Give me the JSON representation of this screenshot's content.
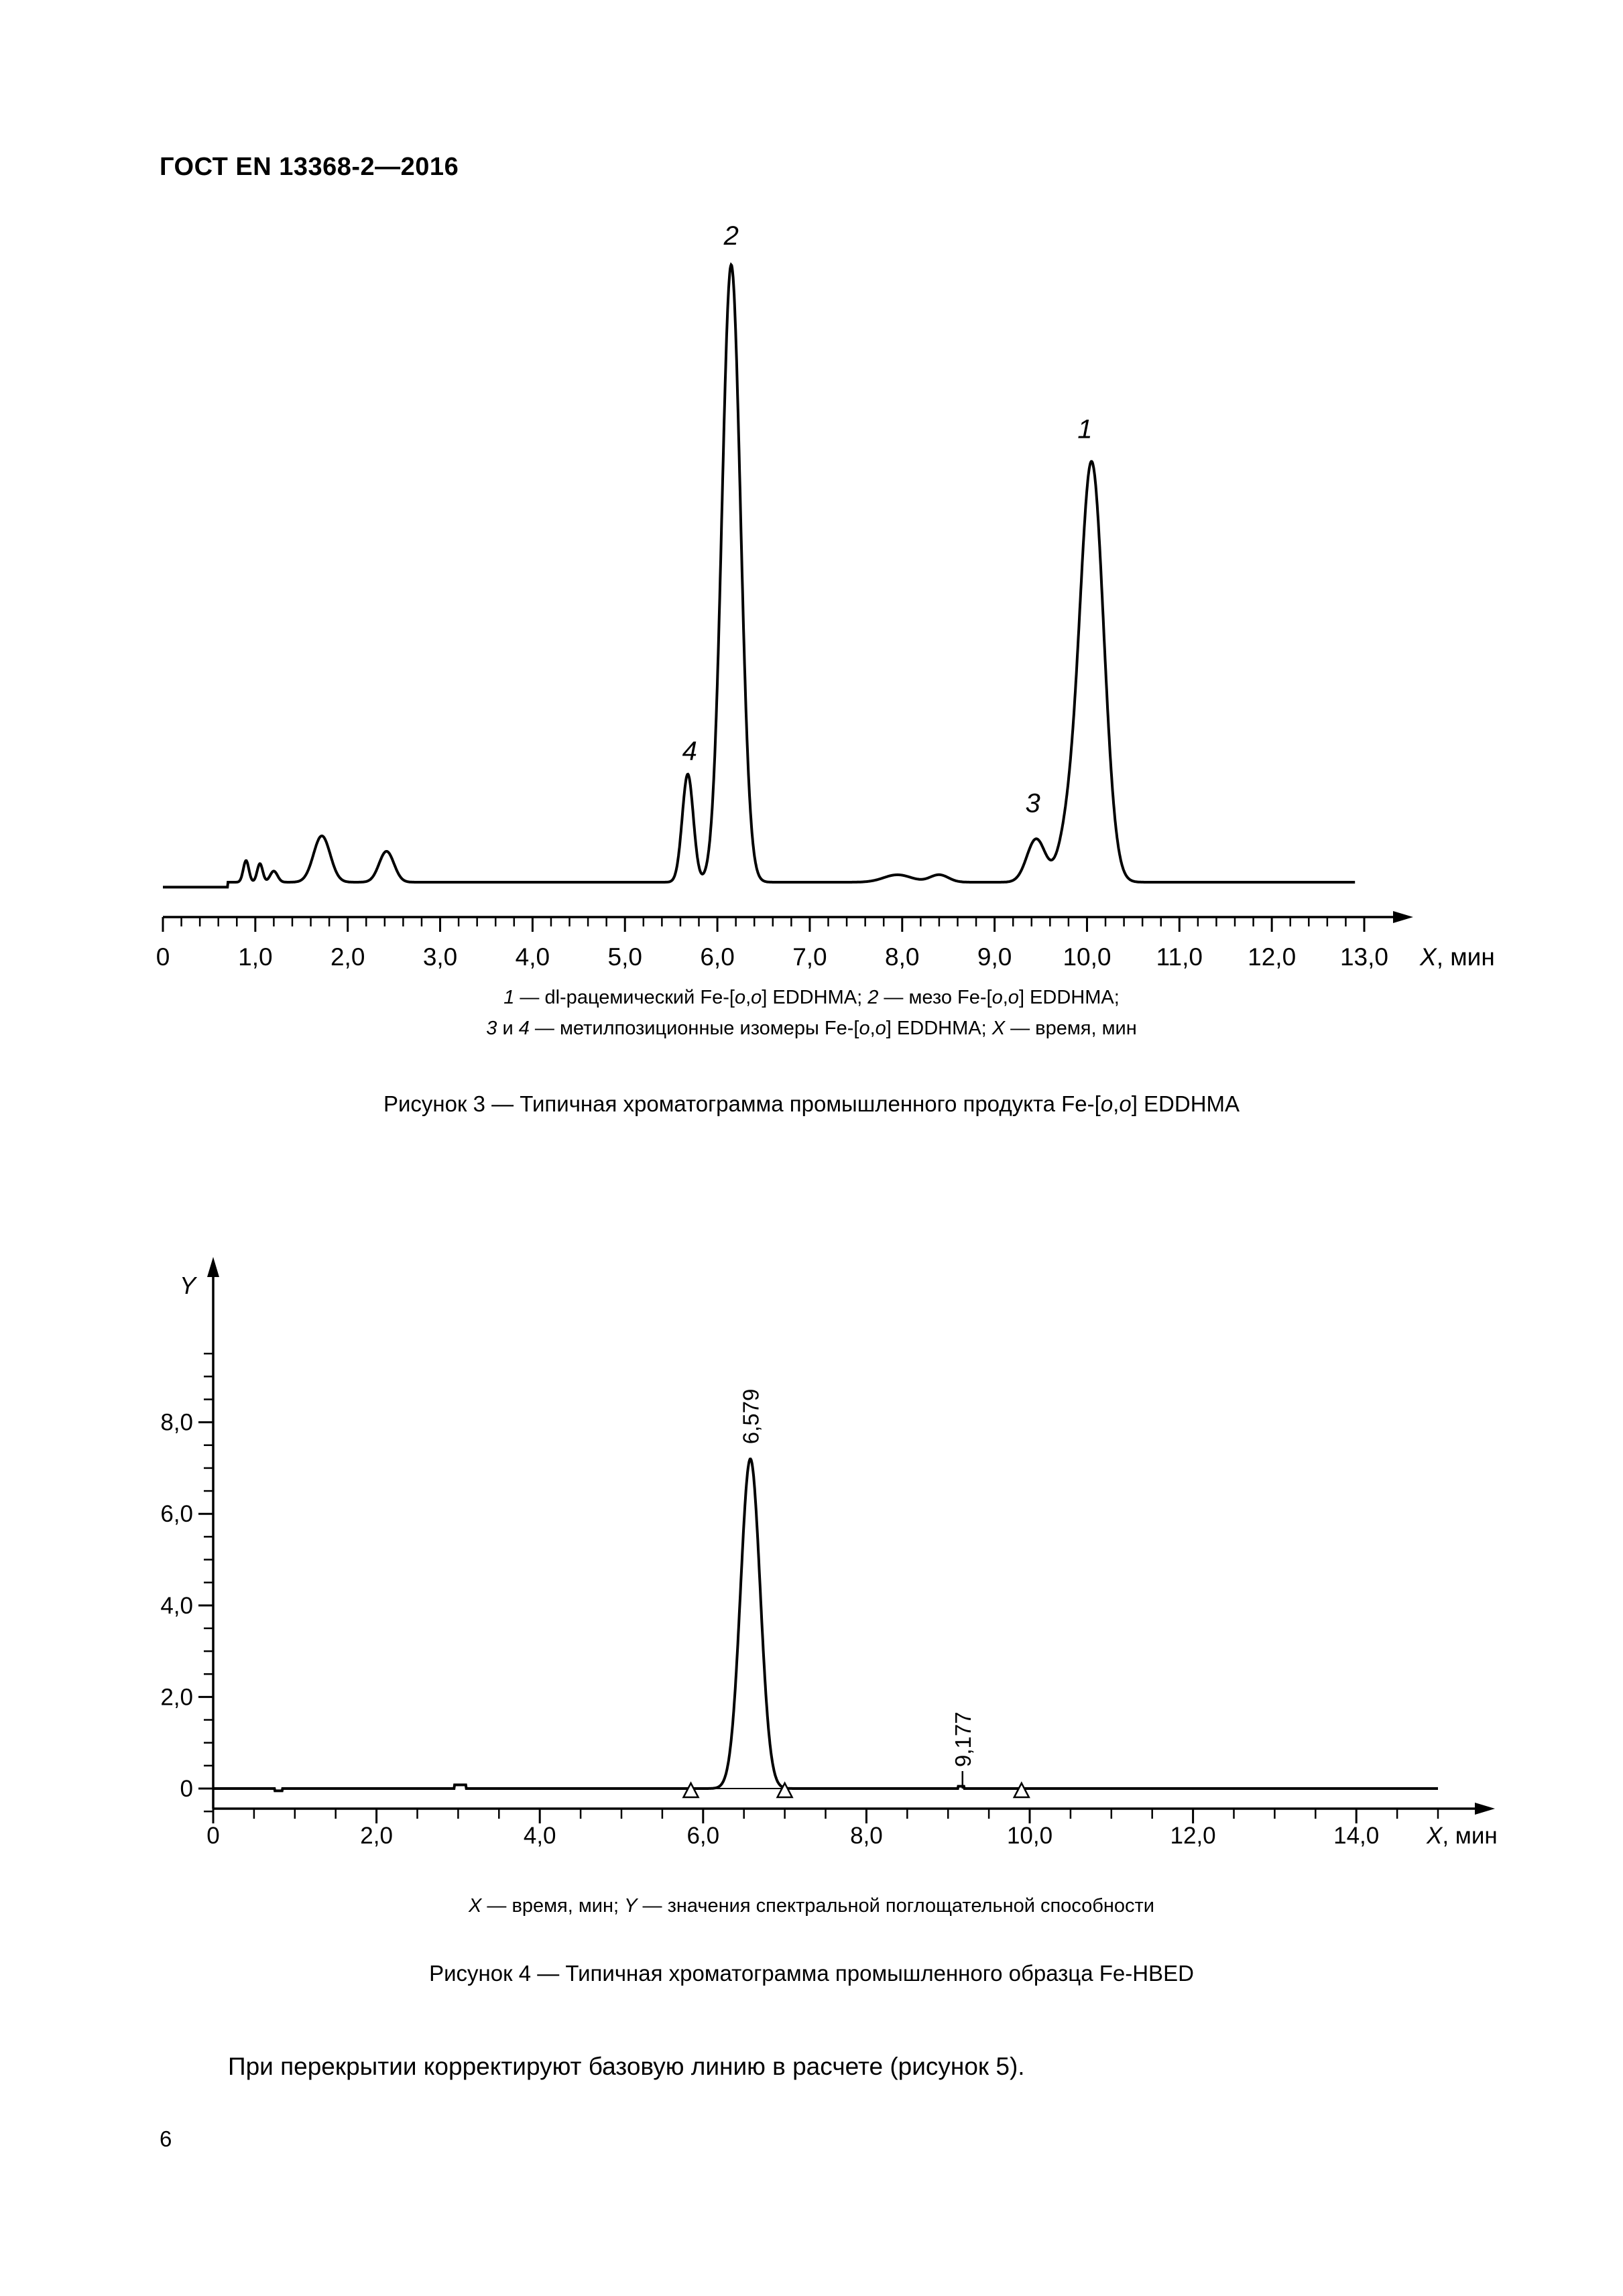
{
  "document": {
    "header": "ГОСТ EN 13368-2—2016",
    "page_number": "6",
    "body_text": "При перекрытии корректируют базовую линию в расчете (рисунок 5)."
  },
  "figure3": {
    "legend_line1": [
      {
        "t": "1",
        "i": true
      },
      {
        "t": " — dl-рацемический Fe-[",
        "i": false
      },
      {
        "t": "o",
        "i": true
      },
      {
        "t": ",",
        "i": false
      },
      {
        "t": "o",
        "i": true
      },
      {
        "t": "] EDDHMA; ",
        "i": false
      },
      {
        "t": "2",
        "i": true
      },
      {
        "t": " — мезо Fe-[",
        "i": false
      },
      {
        "t": "o",
        "i": true
      },
      {
        "t": ",",
        "i": false
      },
      {
        "t": "o",
        "i": true
      },
      {
        "t": "] EDDHMA;",
        "i": false
      }
    ],
    "legend_line2": [
      {
        "t": "3",
        "i": true
      },
      {
        "t": " и ",
        "i": false
      },
      {
        "t": "4",
        "i": true
      },
      {
        "t": " — метилпозиционные изомеры Fe-[",
        "i": false
      },
      {
        "t": "o",
        "i": true
      },
      {
        "t": ",",
        "i": false
      },
      {
        "t": "o",
        "i": true
      },
      {
        "t": "] EDDHMA; ",
        "i": false
      },
      {
        "t": "X",
        "i": true
      },
      {
        "t": " — время, мин",
        "i": false
      }
    ],
    "caption": [
      {
        "t": "Рисунок 3 — Типичная хроматограмма промышленного продукта Fe-[",
        "i": false
      },
      {
        "t": "o",
        "i": true
      },
      {
        "t": ",",
        "i": false
      },
      {
        "t": "o",
        "i": true
      },
      {
        "t": "] EDDHMA",
        "i": false
      }
    ]
  },
  "figure4": {
    "legend": [
      {
        "t": "X",
        "i": true
      },
      {
        "t": " — время, мин; ",
        "i": false
      },
      {
        "t": "Y",
        "i": true
      },
      {
        "t": " — значения спектральной поглощательной способности",
        "i": false
      }
    ],
    "caption": [
      {
        "t": "Рисунок 4 — Типичная хроматограмма промышленного образца Fe-HBED",
        "i": false
      }
    ]
  },
  "chart_data": [
    {
      "type": "line",
      "x_axis_label": {
        "letter": "X",
        "unit": ", мин"
      },
      "xlim": [
        0,
        13.0
      ],
      "x_ticks": [
        "0",
        "1,0",
        "2,0",
        "3,0",
        "4,0",
        "5,0",
        "6,0",
        "7,0",
        "8,0",
        "9,0",
        "10,0",
        "11,0",
        "12,0",
        "13,0"
      ],
      "y_axis": "none (relative response)",
      "peak_labels": [
        {
          "label": "4",
          "x": 5.7
        },
        {
          "label": "2",
          "x": 6.15
        },
        {
          "label": "3",
          "x": 9.45
        },
        {
          "label": "1",
          "x": 10.05
        }
      ],
      "peaks": [
        {
          "x": 0.9,
          "height": 0.035,
          "width": 0.03
        },
        {
          "x": 1.05,
          "height": 0.03,
          "width": 0.03
        },
        {
          "x": 1.2,
          "height": 0.018,
          "width": 0.04
        },
        {
          "x": 1.72,
          "height": 0.075,
          "width": 0.09
        },
        {
          "x": 2.42,
          "height": 0.05,
          "width": 0.08
        },
        {
          "x": 5.68,
          "height": 0.175,
          "width": 0.06
        },
        {
          "x": 6.15,
          "height": 1.0,
          "width": 0.1
        },
        {
          "x": 7.95,
          "height": 0.012,
          "width": 0.15
        },
        {
          "x": 8.4,
          "height": 0.012,
          "width": 0.1
        },
        {
          "x": 9.45,
          "height": 0.07,
          "width": 0.1
        },
        {
          "x": 9.78,
          "height": 0.06,
          "width": 0.1
        },
        {
          "x": 10.05,
          "height": 0.68,
          "width": 0.13
        }
      ],
      "baseline": 0.0
    },
    {
      "type": "line",
      "x_axis_label": {
        "letter": "X",
        "unit": ", мин"
      },
      "y_axis_label": "Y",
      "xlim": [
        0,
        15.0
      ],
      "ylim": [
        -0.5,
        10.0
      ],
      "x_ticks": [
        "0",
        "2,0",
        "4,0",
        "6,0",
        "8,0",
        "10,0",
        "12,0",
        "14,0"
      ],
      "y_ticks": [
        "0",
        "2,0",
        "4,0",
        "6,0",
        "8,0"
      ],
      "peaks": [
        {
          "x": 6.579,
          "height": 7.2,
          "width": 0.12,
          "label": "6,579"
        },
        {
          "x": 9.177,
          "height": 0.05,
          "width": 0.02,
          "label": "9,177"
        }
      ],
      "baseline_markers_x": [
        5.85,
        7.0,
        9.9
      ],
      "baseline": 0.0
    }
  ]
}
